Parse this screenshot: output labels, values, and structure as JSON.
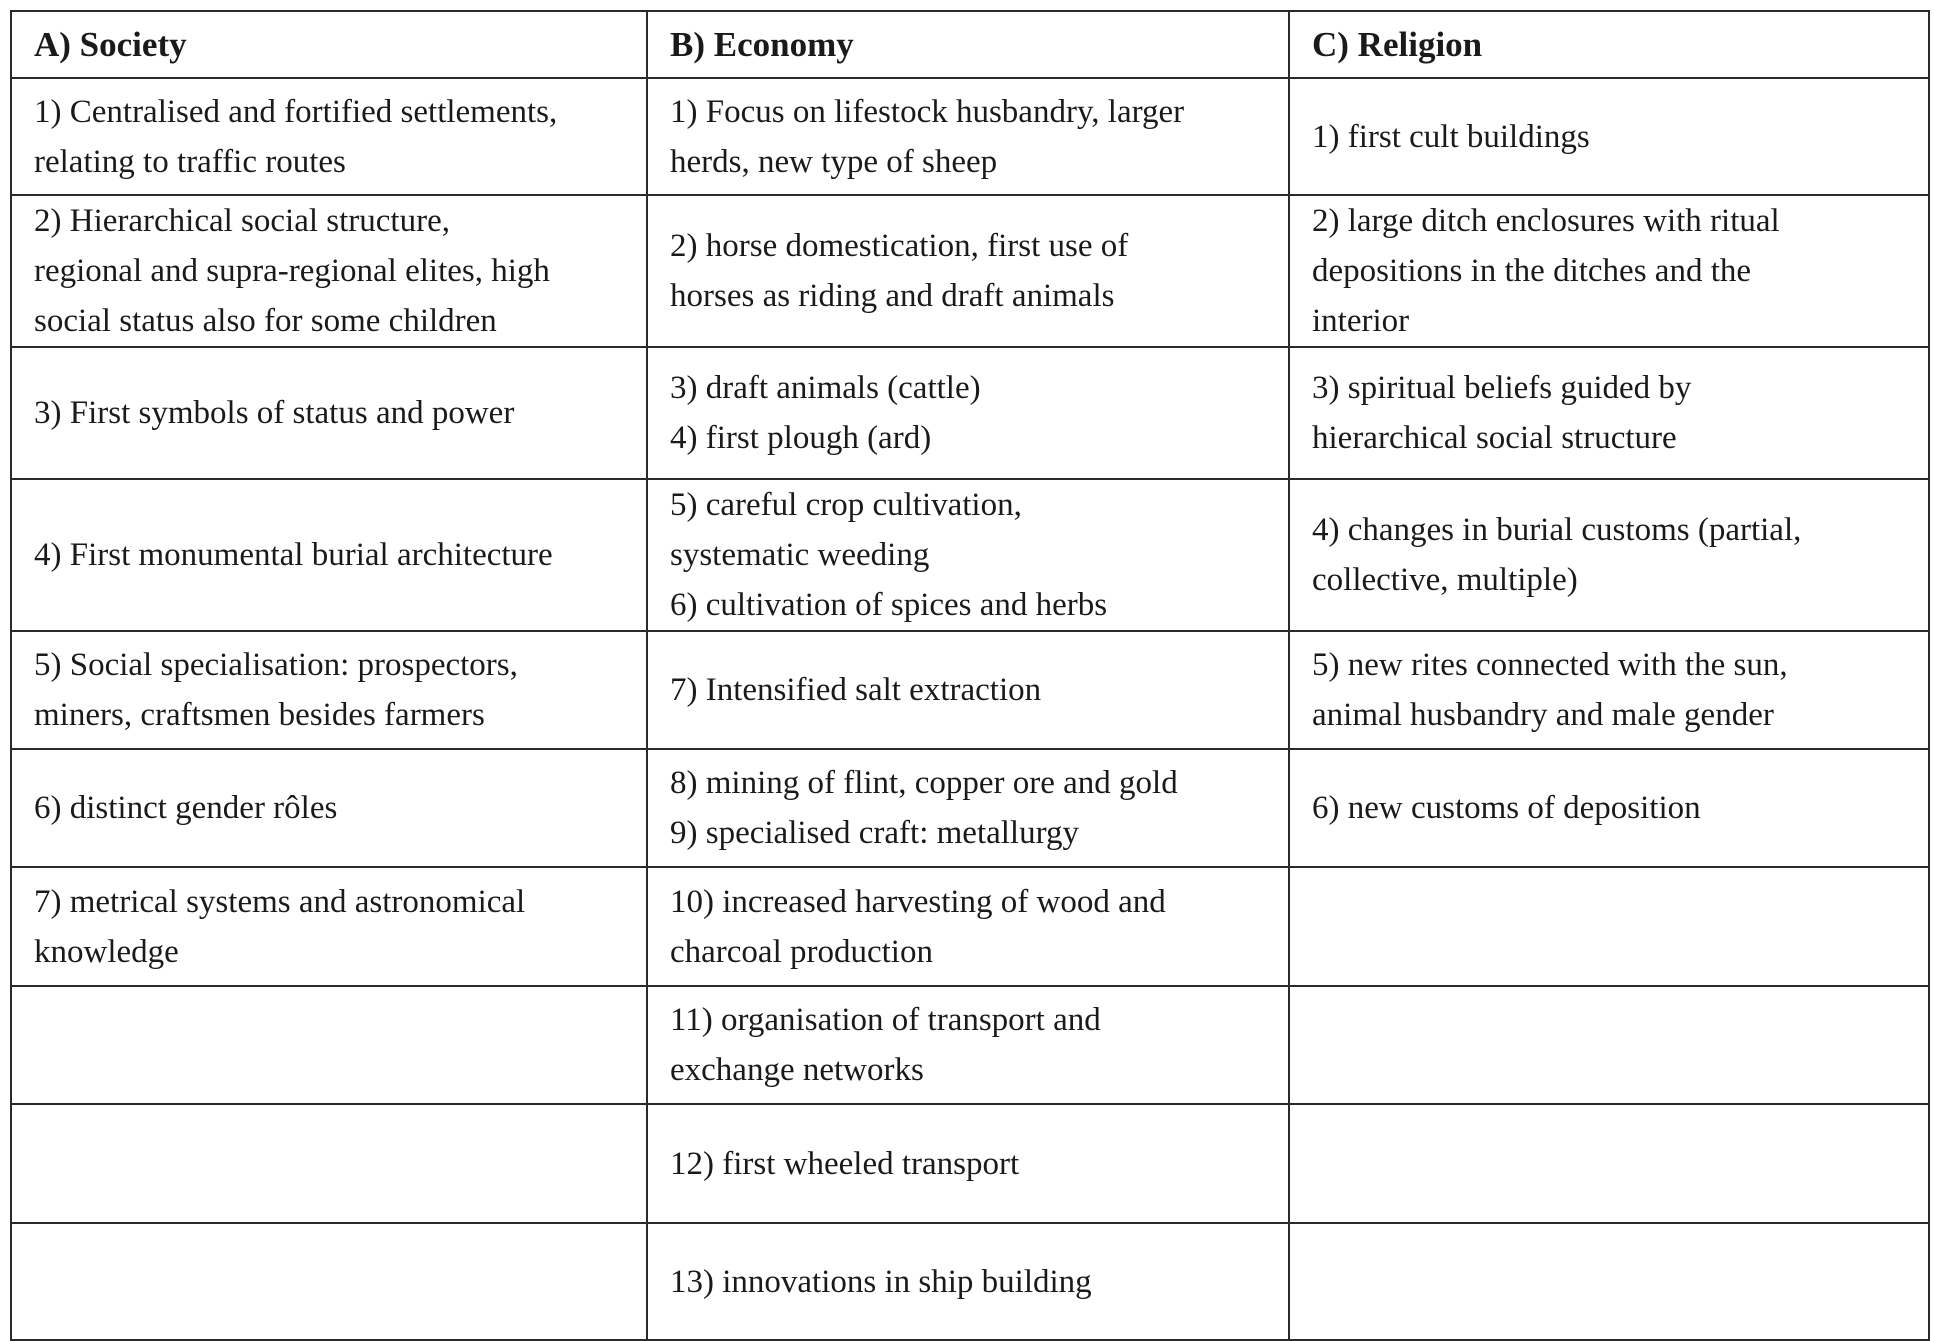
{
  "headers": [
    "A) Society",
    "B) Economy",
    "C) Religion"
  ],
  "rows": [
    [
      [
        "1) Centralised and fortified settlements,",
        "relating to traffic routes"
      ],
      [
        "1) Focus on lifestock husbandry, larger",
        "herds, new type of sheep"
      ],
      [
        "1) first cult buildings"
      ]
    ],
    [
      [
        "2) Hierarchical social structure,",
        "regional and supra-regional elites, high",
        "social status also for some children"
      ],
      [
        "2) horse domestication, first use of",
        "horses as riding and draft animals"
      ],
      [
        "2) large ditch enclosures with ritual",
        "depositions in the ditches and the",
        "interior"
      ]
    ],
    [
      [
        "3) First symbols of status and power"
      ],
      [
        "3) draft animals (cattle)",
        "4) first plough (ard)"
      ],
      [
        "3) spiritual beliefs guided by",
        "hierarchical social structure"
      ]
    ],
    [
      [
        "4) First monumental burial architecture"
      ],
      [
        "5) careful crop cultivation,",
        "systematic weeding",
        "6) cultivation of spices and herbs"
      ],
      [
        "4) changes in burial customs (partial,",
        "collective, multiple)"
      ]
    ],
    [
      [
        "5) Social specialisation: prospectors,",
        "miners, craftsmen besides farmers"
      ],
      [
        "7) Intensified salt extraction"
      ],
      [
        "5) new rites connected with the sun,",
        "animal husbandry and male gender"
      ]
    ],
    [
      [
        "6) distinct gender rôles"
      ],
      [
        "8) mining of flint, copper ore and gold",
        "9) specialised craft: metallurgy"
      ],
      [
        "6) new customs of deposition"
      ]
    ],
    [
      [
        "7) metrical systems and astronomical",
        "knowledge"
      ],
      [
        "10) increased harvesting of wood and",
        "charcoal production"
      ],
      []
    ],
    [
      [],
      [
        "11) organisation of transport and",
        "exchange networks"
      ],
      []
    ],
    [
      [],
      [
        "12) first wheeled transport"
      ],
      []
    ],
    [
      [],
      [
        "13) innovations in ship building"
      ],
      []
    ]
  ]
}
